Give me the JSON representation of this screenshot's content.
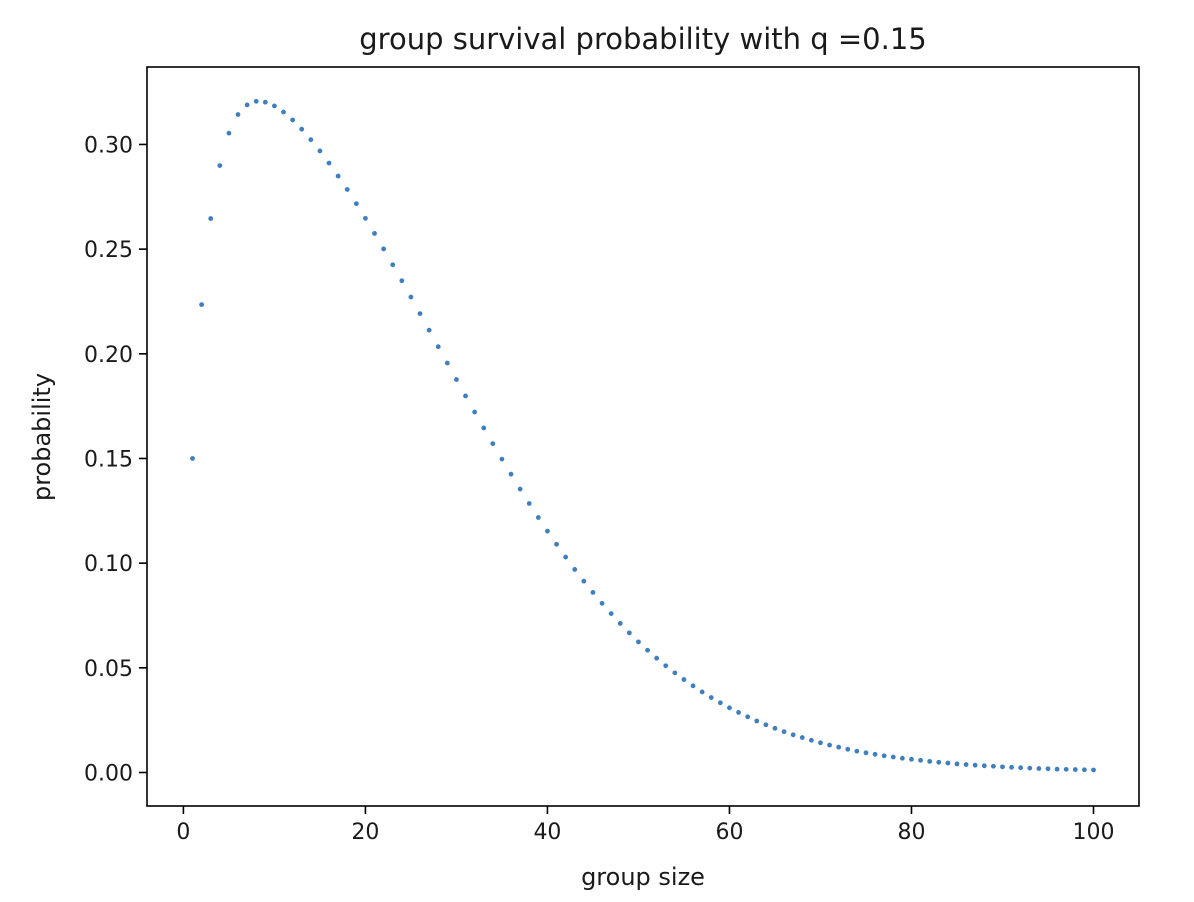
{
  "chart_data": {
    "type": "scatter",
    "title": "group survival probability with q =0.15",
    "xlabel": "group size",
    "ylabel": "probability",
    "xlim": [
      -4,
      105
    ],
    "ylim": [
      -0.016,
      0.337
    ],
    "xticks": [
      0,
      20,
      40,
      60,
      80,
      100
    ],
    "yticks": [
      0.0,
      0.05,
      0.1,
      0.15,
      0.2,
      0.25,
      0.3
    ],
    "xtick_labels": [
      "0",
      "20",
      "40",
      "60",
      "80",
      "100"
    ],
    "ytick_labels": [
      "0.00",
      "0.05",
      "0.10",
      "0.15",
      "0.20",
      "0.25",
      "0.30"
    ],
    "grid": false,
    "point_color": "#3f7fbf",
    "x": [
      1,
      2,
      3,
      4,
      5,
      6,
      7,
      8,
      9,
      10,
      11,
      12,
      13,
      14,
      15,
      16,
      17,
      18,
      19,
      20,
      21,
      22,
      23,
      24,
      25,
      26,
      27,
      28,
      29,
      30,
      31,
      32,
      33,
      34,
      35,
      36,
      37,
      38,
      39,
      40,
      41,
      42,
      43,
      44,
      45,
      46,
      47,
      48,
      49,
      50,
      51,
      52,
      53,
      54,
      55,
      56,
      57,
      58,
      59,
      60,
      61,
      62,
      63,
      64,
      65,
      66,
      67,
      68,
      69,
      70,
      71,
      72,
      73,
      74,
      75,
      76,
      77,
      78,
      79,
      80,
      81,
      82,
      83,
      84,
      85,
      86,
      87,
      88,
      89,
      90,
      91,
      92,
      93,
      94,
      95,
      96,
      97,
      98,
      99,
      100
    ],
    "y": [
      0.15,
      0.2235,
      0.2646,
      0.2899,
      0.3054,
      0.3143,
      0.3189,
      0.3206,
      0.3202,
      0.3184,
      0.3155,
      0.3117,
      0.3073,
      0.3023,
      0.2969,
      0.2911,
      0.2849,
      0.2785,
      0.2717,
      0.2647,
      0.2575,
      0.2501,
      0.2425,
      0.2349,
      0.2271,
      0.2192,
      0.2113,
      0.2034,
      0.1956,
      0.1877,
      0.1799,
      0.1722,
      0.1646,
      0.1571,
      0.1497,
      0.1425,
      0.1354,
      0.1285,
      0.1218,
      0.1153,
      0.109,
      0.1029,
      0.097,
      0.0914,
      0.086,
      0.0808,
      0.0759,
      0.0712,
      0.0667,
      0.0624,
      0.0584,
      0.0546,
      0.051,
      0.0476,
      0.0444,
      0.0414,
      0.0385,
      0.0358,
      0.0333,
      0.0309,
      0.0287,
      0.0266,
      0.0246,
      0.0228,
      0.0211,
      0.0195,
      0.018,
      0.0167,
      0.0154,
      0.0142,
      0.0131,
      0.0121,
      0.0111,
      0.0102,
      0.0094,
      0.0087,
      0.008,
      0.0074,
      0.0068,
      0.0063,
      0.0058,
      0.0053,
      0.0049,
      0.0045,
      0.0041,
      0.0038,
      0.0035,
      0.0032,
      0.003,
      0.0027,
      0.0025,
      0.0023,
      0.0021,
      0.0019,
      0.0018,
      0.0016,
      0.0015,
      0.0014,
      0.0013,
      0.0012
    ]
  }
}
